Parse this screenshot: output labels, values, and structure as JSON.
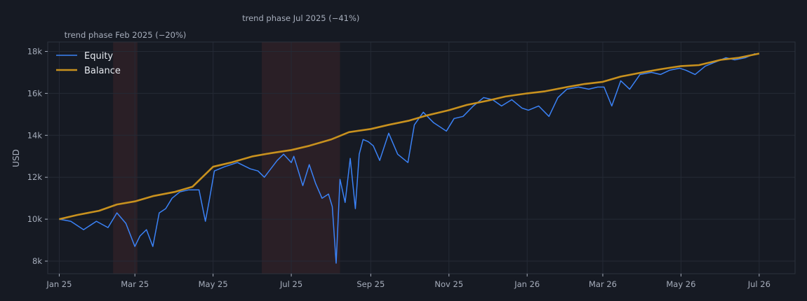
{
  "chart_data": {
    "type": "line",
    "ylabel": "USD",
    "y_ticks": [
      8000,
      10000,
      12000,
      14000,
      16000,
      18000
    ],
    "y_tick_labels": [
      "8k",
      "10k",
      "12k",
      "14k",
      "16k",
      "18k"
    ],
    "ylim": [
      7400,
      18450
    ],
    "xlim": [
      "2024-12-23",
      "2026-07-29"
    ],
    "x_ticks": [
      "2025-01-01",
      "2025-03-01",
      "2025-05-01",
      "2025-07-01",
      "2025-09-01",
      "2025-11-01",
      "2026-01-01",
      "2026-03-01",
      "2026-05-01",
      "2026-07-01"
    ],
    "x_tick_labels": [
      "Jan 25",
      "Mar 25",
      "May 25",
      "Jul 25",
      "Sep 25",
      "Nov 25",
      "Jan 26",
      "Mar 26",
      "May 26",
      "Jul 26"
    ],
    "grid": true,
    "legend_position": "top-left",
    "colors": {
      "equity": "#3b82f6",
      "balance": "#c8911e",
      "shade": "#2a1f26",
      "grid": "#252a35",
      "plot_border": "#2c313c"
    },
    "series": [
      {
        "name": "Equity",
        "x": [
          "2025-01-01",
          "2025-01-10",
          "2025-01-20",
          "2025-01-30",
          "2025-02-08",
          "2025-02-15",
          "2025-02-22",
          "2025-03-01",
          "2025-03-05",
          "2025-03-10",
          "2025-03-15",
          "2025-03-20",
          "2025-03-25",
          "2025-03-30",
          "2025-04-05",
          "2025-04-12",
          "2025-04-20",
          "2025-04-25",
          "2025-04-28",
          "2025-05-02",
          "2025-05-10",
          "2025-05-20",
          "2025-05-30",
          "2025-06-05",
          "2025-06-10",
          "2025-06-20",
          "2025-06-25",
          "2025-07-01",
          "2025-07-03",
          "2025-07-06",
          "2025-07-10",
          "2025-07-15",
          "2025-07-20",
          "2025-07-25",
          "2025-07-30",
          "2025-08-02",
          "2025-08-05",
          "2025-08-08",
          "2025-08-12",
          "2025-08-16",
          "2025-08-20",
          "2025-08-23",
          "2025-08-26",
          "2025-08-30",
          "2025-09-03",
          "2025-09-08",
          "2025-09-15",
          "2025-09-22",
          "2025-09-30",
          "2025-10-05",
          "2025-10-12",
          "2025-10-20",
          "2025-10-30",
          "2025-11-05",
          "2025-11-12",
          "2025-11-20",
          "2025-11-28",
          "2025-12-05",
          "2025-12-12",
          "2025-12-20",
          "2025-12-28",
          "2026-01-02",
          "2026-01-10",
          "2026-01-18",
          "2026-01-25",
          "2026-02-01",
          "2026-02-10",
          "2026-02-18",
          "2026-02-25",
          "2026-03-02",
          "2026-03-08",
          "2026-03-15",
          "2026-03-22",
          "2026-03-30",
          "2026-04-08",
          "2026-04-15",
          "2026-04-22",
          "2026-04-30",
          "2026-05-05",
          "2026-05-12",
          "2026-05-20",
          "2026-05-28",
          "2026-06-05",
          "2026-06-12",
          "2026-06-20",
          "2026-06-28"
        ],
        "values": [
          10000,
          9900,
          9500,
          9900,
          9600,
          10300,
          9800,
          8700,
          9200,
          9500,
          8700,
          10300,
          10500,
          11000,
          11300,
          11400,
          11400,
          9900,
          10900,
          12300,
          12500,
          12700,
          12400,
          12300,
          12000,
          12800,
          13100,
          12700,
          13000,
          12400,
          11600,
          12600,
          11700,
          11000,
          11200,
          10600,
          7900,
          11900,
          10800,
          12900,
          10500,
          13100,
          13800,
          13700,
          13500,
          12800,
          14100,
          13100,
          12700,
          14500,
          15100,
          14600,
          14200,
          14800,
          14900,
          15400,
          15800,
          15700,
          15400,
          15700,
          15300,
          15200,
          15400,
          14900,
          15800,
          16200,
          16300,
          16200,
          16300,
          16300,
          15400,
          16600,
          16200,
          16900,
          17000,
          16900,
          17100,
          17200,
          17100,
          16900,
          17300,
          17500,
          17700,
          17600,
          17700,
          17900
        ]
      },
      {
        "name": "Balance",
        "x": [
          "2025-01-01",
          "2025-01-15",
          "2025-02-01",
          "2025-02-15",
          "2025-03-01",
          "2025-03-15",
          "2025-04-01",
          "2025-04-15",
          "2025-05-01",
          "2025-05-15",
          "2025-06-01",
          "2025-06-15",
          "2025-07-01",
          "2025-07-15",
          "2025-08-01",
          "2025-08-15",
          "2025-09-01",
          "2025-09-15",
          "2025-10-01",
          "2025-10-15",
          "2025-11-01",
          "2025-11-15",
          "2025-12-01",
          "2025-12-15",
          "2026-01-01",
          "2026-01-15",
          "2026-02-01",
          "2026-02-15",
          "2026-03-01",
          "2026-03-15",
          "2026-04-01",
          "2026-04-15",
          "2026-05-01",
          "2026-05-15",
          "2026-06-01",
          "2026-06-15",
          "2026-07-01"
        ],
        "values": [
          10000,
          10200,
          10400,
          10700,
          10850,
          11100,
          11300,
          11550,
          12500,
          12700,
          13000,
          13150,
          13300,
          13500,
          13800,
          14150,
          14300,
          14500,
          14700,
          14950,
          15200,
          15450,
          15650,
          15850,
          16000,
          16100,
          16300,
          16450,
          16550,
          16800,
          17000,
          17150,
          17300,
          17350,
          17600,
          17700,
          17900
        ]
      }
    ],
    "shaded_periods": [
      {
        "start": "2025-02-12",
        "end": "2025-03-03",
        "label": "trend phase Feb 2025  (−20%)"
      },
      {
        "start": "2025-06-08",
        "end": "2025-08-08",
        "label": "trend phase Jul 2025  (−41%)"
      }
    ]
  }
}
